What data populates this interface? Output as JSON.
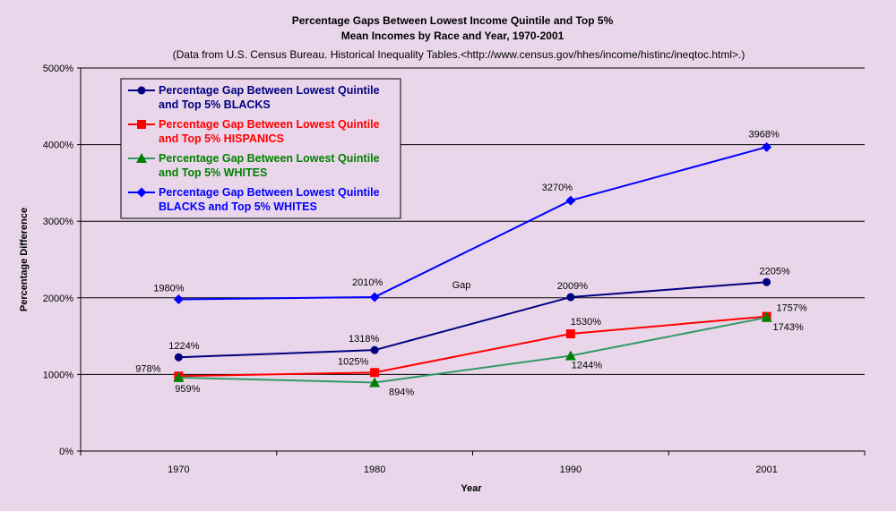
{
  "chart_data": {
    "type": "line",
    "title_lines": [
      "Percentage Gaps Between Lowest Income Quintile and Top 5%",
      "Mean Incomes by Race and Year, 1970-2001"
    ],
    "subtitle": "(Data from U.S. Census Bureau. Historical Inequality Tables.<http://www.census.gov/hhes/income/histinc/ineqtoc.html>.)",
    "xlabel": "Year",
    "ylabel": "Percentage Difference",
    "categories": [
      "1970",
      "1980",
      "1990",
      "2001"
    ],
    "y_ticks": [
      "0%",
      "1000%",
      "2000%",
      "3000%",
      "4000%",
      "5000%"
    ],
    "ylim": [
      0,
      5000
    ],
    "grid": "horizontal",
    "legend_position": "top-left",
    "annotation": "Gap",
    "series": [
      {
        "name_lines": [
          "Percentage Gap Between Lowest Quintile",
          "and Top 5% BLACKS"
        ],
        "values": [
          1224,
          1318,
          2009,
          2205
        ],
        "labels": [
          "1224%",
          "1318%",
          "2009%",
          "2205%"
        ],
        "color": "#000080",
        "marker": "circle"
      },
      {
        "name_lines": [
          "Percentage Gap Between Lowest Quintile",
          "and Top 5% HISPANICS"
        ],
        "values": [
          978,
          1025,
          1530,
          1757
        ],
        "labels": [
          "978%",
          "1025%",
          "1530%",
          "1757%"
        ],
        "color": "#ff0000",
        "marker": "square"
      },
      {
        "name_lines": [
          "Percentage Gap Between Lowest Quintile",
          "and Top 5% WHITES"
        ],
        "values": [
          959,
          894,
          1244,
          1743
        ],
        "labels": [
          "959%",
          "894%",
          "1244%",
          "1743%"
        ],
        "color": "#008000",
        "line_color": "#339966",
        "marker": "triangle"
      },
      {
        "name_lines": [
          "Percentage Gap Between Lowest Quintile",
          "BLACKS and Top 5% WHITES"
        ],
        "values": [
          1980,
          2010,
          3270,
          3968
        ],
        "labels": [
          "1980%",
          "2010%",
          "3270%",
          "3968%"
        ],
        "color": "#0000ff",
        "marker": "diamond"
      }
    ]
  }
}
